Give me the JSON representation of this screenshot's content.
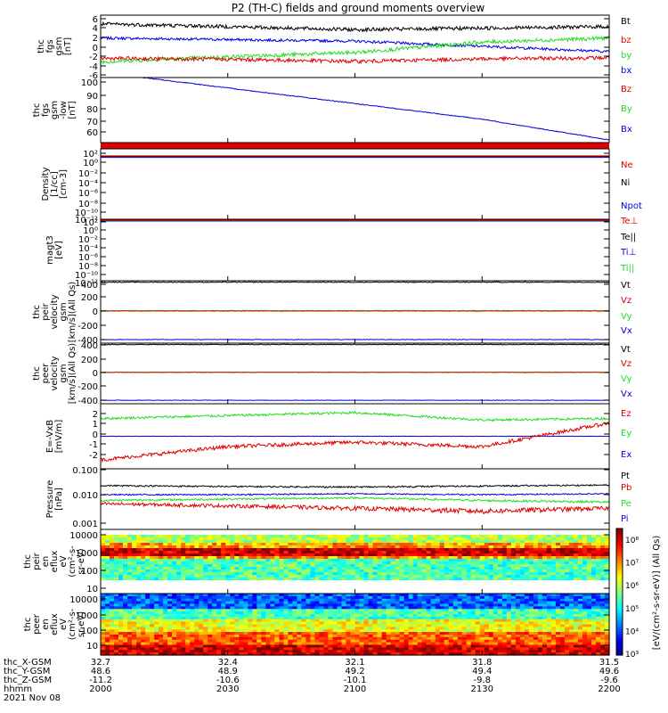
{
  "title": "P2 (TH-C) fields and ground moments overview",
  "colors": {
    "black": "#000000",
    "red": "#e00000",
    "green": "#22dd22",
    "blue": "#0000dd"
  },
  "panels": [
    {
      "id": "fgs",
      "ylabel": [
        "thc",
        "fgs",
        "gsm",
        "[nT]"
      ],
      "yticks": [
        "6",
        "4",
        "2",
        "0",
        "-2",
        "-4",
        "-6"
      ],
      "legend": [
        {
          "text": "Bt",
          "color": "#000000"
        },
        {
          "text": "bz",
          "color": "#e00000"
        },
        {
          "text": "by",
          "color": "#22dd22"
        },
        {
          "text": "bx",
          "color": "#0000dd"
        }
      ]
    },
    {
      "id": "fgs-low",
      "ylabel": [
        "thc",
        "fgs",
        "gsm",
        "-low",
        "[nT]"
      ],
      "yticks": [
        "100",
        "90",
        "80",
        "70",
        "60"
      ],
      "legend": [
        {
          "text": "Bz",
          "color": "#e00000"
        },
        {
          "text": "By",
          "color": "#22dd22"
        },
        {
          "text": "Bx",
          "color": "#0000dd"
        }
      ]
    },
    {
      "id": "density",
      "ylabel": [
        "Density",
        "[1/cc]",
        "[cm-3]"
      ],
      "yticks": [
        "10²",
        "10⁰",
        "10⁻²",
        "10⁻⁴",
        "10⁻⁶",
        "10⁻⁸",
        "10⁻¹⁰",
        "10⁻¹²"
      ],
      "legend": [
        {
          "text": "Ne",
          "color": "#e00000"
        },
        {
          "text": "Ni",
          "color": "#000000"
        },
        {
          "text": "Npot",
          "color": "#0000dd"
        }
      ]
    },
    {
      "id": "temp",
      "ylabel": [
        "magt3",
        "[eV]"
      ],
      "yticks": [
        "10²",
        "10⁰",
        "10⁻²",
        "10⁻⁴",
        "10⁻⁶",
        "10⁻⁸",
        "10⁻¹⁰",
        "10⁻¹²"
      ],
      "legend": [
        {
          "text": "Te⊥",
          "color": "#e00000"
        },
        {
          "text": "Te||",
          "color": "#000000"
        },
        {
          "text": "Ti⊥",
          "color": "#0000dd"
        },
        {
          "text": "Ti||",
          "color": "#22dd22"
        }
      ]
    },
    {
      "id": "peir-vel",
      "ylabel": [
        "thc",
        "peir",
        "velocity",
        "gsm",
        "[km/s](All Qs)"
      ],
      "yticks": [
        "400",
        "200",
        "0",
        "-200",
        "-400"
      ],
      "legend": [
        {
          "text": "Vt",
          "color": "#000000"
        },
        {
          "text": "Vz",
          "color": "#e00000"
        },
        {
          "text": "Vy",
          "color": "#22dd22"
        },
        {
          "text": "Vx",
          "color": "#0000dd"
        }
      ]
    },
    {
      "id": "peer-vel",
      "ylabel": [
        "thc",
        "peer",
        "velocity",
        "gsm",
        "[km/s](All Qs)"
      ],
      "yticks": [
        "400",
        "200",
        "0",
        "-200",
        "-400"
      ],
      "legend": [
        {
          "text": "Vt",
          "color": "#000000"
        },
        {
          "text": "Vz",
          "color": "#e00000"
        },
        {
          "text": "Vy",
          "color": "#22dd22"
        },
        {
          "text": "Vx",
          "color": "#0000dd"
        }
      ]
    },
    {
      "id": "efield",
      "ylabel": [
        "E=-VxB",
        "[mV/m]"
      ],
      "yticks": [
        "2",
        "1",
        "0",
        "-1",
        "-2"
      ],
      "legend": [
        {
          "text": "Ez",
          "color": "#e00000"
        },
        {
          "text": "Ey",
          "color": "#22dd22"
        },
        {
          "text": "Ex",
          "color": "#0000dd"
        }
      ]
    },
    {
      "id": "pressure",
      "ylabel": [
        "Pressure",
        "[nPa]"
      ],
      "yticks": [
        "0.100",
        "0.010",
        "0.001"
      ],
      "legend": [
        {
          "text": "Pt",
          "color": "#000000"
        },
        {
          "text": "Pb",
          "color": "#e00000"
        },
        {
          "text": "Pe",
          "color": "#22dd22"
        },
        {
          "text": "Pi",
          "color": "#0000dd"
        }
      ]
    },
    {
      "id": "peir-spec",
      "ylabel": [
        "thc",
        "peir",
        "en",
        "eflux",
        "eV",
        "(cm²-s-",
        "sr-eV)"
      ],
      "yticks": [
        "10000",
        "1000",
        "100",
        "10"
      ]
    },
    {
      "id": "peer-spec",
      "ylabel": [
        "thc",
        "peer",
        "en",
        "eflux",
        "eV",
        "(cm²-s-",
        "sr-eV)"
      ],
      "yticks": [
        "10000",
        "1000",
        "100",
        "10"
      ]
    }
  ],
  "colorbar": {
    "ticks": [
      "10⁸",
      "10⁷",
      "10⁶",
      "10⁵",
      "10⁴",
      "10³"
    ],
    "label": "[eV/(cm²-s-sr-eV)] (All Qs)"
  },
  "orbit": {
    "rows": [
      {
        "label": "thc_X-GSM",
        "values": [
          "32.7",
          "32.4",
          "32.1",
          "31.8",
          "31.5"
        ]
      },
      {
        "label": "thc_Y-GSM",
        "values": [
          "48.6",
          "48.9",
          "49.2",
          "49.4",
          "49.6"
        ]
      },
      {
        "label": "thc_Z-GSM",
        "values": [
          "-11.2",
          "-10.6",
          "-10.1",
          "-9.8",
          "-9.6"
        ]
      },
      {
        "label": "hhmm",
        "values": [
          "2000",
          "2030",
          "2100",
          "2130",
          "2200"
        ]
      }
    ],
    "date": "2021 Nov 08"
  },
  "chart_data": [
    {
      "type": "line",
      "title": "P2 (TH-C) fields and ground moments overview",
      "ylabel": "thc fgs gsm [nT]",
      "ylim": [
        -6,
        6
      ],
      "x": [
        "2000",
        "2030",
        "2100",
        "2130",
        "2200"
      ],
      "series": [
        {
          "name": "Bt",
          "values": [
            4.3,
            3.8,
            3.2,
            3.5,
            3.8
          ]
        },
        {
          "name": "bz",
          "values": [
            -2.3,
            -2.5,
            -2.9,
            -2.4,
            -2.2
          ]
        },
        {
          "name": "by",
          "values": [
            -3.0,
            -2.0,
            -1.2,
            0.8,
            1.6
          ]
        },
        {
          "name": "bx",
          "values": [
            1.6,
            1.3,
            1.0,
            0.0,
            -1.0
          ]
        }
      ]
    },
    {
      "type": "line",
      "ylabel": "thc fgs gsm -low [nT]",
      "ylim": [
        50,
        100
      ],
      "x": [
        "2000",
        "2030",
        "2100",
        "2130",
        "2200"
      ],
      "series": [
        {
          "name": "Bx",
          "values": [
            104,
            92,
            80,
            68,
            52
          ]
        }
      ]
    },
    {
      "type": "line",
      "ylabel": "Density [1/cc] [cm-3]",
      "ylim": [
        "1e-12",
        "1e2"
      ],
      "log": true,
      "x": [
        "2000",
        "2030",
        "2100",
        "2130",
        "2200"
      ],
      "series": [
        {
          "name": "Ne",
          "values": [
            4,
            4,
            4,
            4,
            4
          ]
        },
        {
          "name": "Ni",
          "values": [
            3,
            3,
            3,
            3,
            3
          ]
        },
        {
          "name": "Npot",
          "values": [
            2,
            2,
            2,
            2,
            2
          ]
        }
      ]
    },
    {
      "type": "line",
      "ylabel": "magt3 [eV]",
      "ylim": [
        "1e-12",
        "1e2"
      ],
      "log": true,
      "x": [
        "2000",
        "2030",
        "2100",
        "2130",
        "2200"
      ],
      "series": [
        {
          "name": "Te⊥",
          "values": [
            50,
            50,
            50,
            50,
            50
          ]
        },
        {
          "name": "Te||",
          "values": [
            60,
            60,
            60,
            60,
            60
          ]
        },
        {
          "name": "Ti⊥",
          "values": [
            40,
            40,
            40,
            40,
            40
          ]
        },
        {
          "name": "Ti||",
          "values": [
            45,
            45,
            45,
            45,
            45
          ]
        }
      ]
    },
    {
      "type": "line",
      "ylabel": "thc peir velocity gsm [km/s](All Qs)",
      "ylim": [
        -450,
        420
      ],
      "x": [
        "2000",
        "2030",
        "2100",
        "2130",
        "2200"
      ],
      "series": [
        {
          "name": "Vt",
          "values": [
            400,
            400,
            400,
            400,
            400
          ]
        },
        {
          "name": "Vz",
          "values": [
            -2,
            -2,
            -2,
            -2,
            -2
          ]
        },
        {
          "name": "Vy",
          "values": [
            4,
            4,
            4,
            4,
            4
          ]
        },
        {
          "name": "Vx",
          "values": [
            -400,
            -400,
            -400,
            -400,
            -400
          ]
        }
      ]
    },
    {
      "type": "line",
      "ylabel": "thc peer velocity gsm [km/s](All Qs)",
      "ylim": [
        -450,
        420
      ],
      "x": [
        "2000",
        "2030",
        "2100",
        "2130",
        "2200"
      ],
      "series": [
        {
          "name": "Vt",
          "values": [
            400,
            400,
            400,
            400,
            400
          ]
        },
        {
          "name": "Vz",
          "values": [
            0,
            0,
            0,
            0,
            0
          ]
        },
        {
          "name": "Vy",
          "values": [
            3,
            3,
            3,
            3,
            3
          ]
        },
        {
          "name": "Vx",
          "values": [
            -400,
            -400,
            -400,
            -400,
            -400
          ]
        }
      ]
    },
    {
      "type": "line",
      "ylabel": "E=-VxB [mV/m]",
      "ylim": [
        -2.2,
        2.2
      ],
      "x": [
        "2000",
        "2030",
        "2100",
        "2130",
        "2200"
      ],
      "series": [
        {
          "name": "Ez",
          "values": [
            -1.6,
            -0.7,
            -0.4,
            -0.7,
            0.9
          ]
        },
        {
          "name": "Ey",
          "values": [
            1.2,
            1.4,
            1.6,
            1.1,
            1.2
          ]
        },
        {
          "name": "Ex",
          "values": [
            0,
            0,
            0,
            0,
            0
          ]
        }
      ]
    },
    {
      "type": "line",
      "ylabel": "Pressure [nPa]",
      "ylim": [
        0.001,
        0.1
      ],
      "log": true,
      "x": [
        "2000",
        "2030",
        "2100",
        "2130",
        "2200"
      ],
      "series": [
        {
          "name": "Pt",
          "values": [
            0.028,
            0.026,
            0.025,
            0.027,
            0.029
          ]
        },
        {
          "name": "Pb",
          "values": [
            0.007,
            0.006,
            0.005,
            0.004,
            0.005
          ]
        },
        {
          "name": "Pe",
          "values": [
            0.009,
            0.01,
            0.011,
            0.009,
            0.008
          ]
        },
        {
          "name": "Pi",
          "values": [
            0.014,
            0.014,
            0.015,
            0.014,
            0.015
          ]
        }
      ]
    },
    {
      "type": "heatmap",
      "ylabel": "thc peir en eflux eV (cm²-s- sr-eV)",
      "ylim": [
        5,
        20000
      ],
      "x": [
        "2000",
        "2030",
        "2100",
        "2130",
        "2200"
      ]
    },
    {
      "type": "heatmap",
      "ylabel": "thc peer en eflux eV (cm²-s- sr-eV)",
      "ylim": [
        5,
        20000
      ],
      "x": [
        "2000",
        "2030",
        "2100",
        "2130",
        "2200"
      ]
    }
  ]
}
